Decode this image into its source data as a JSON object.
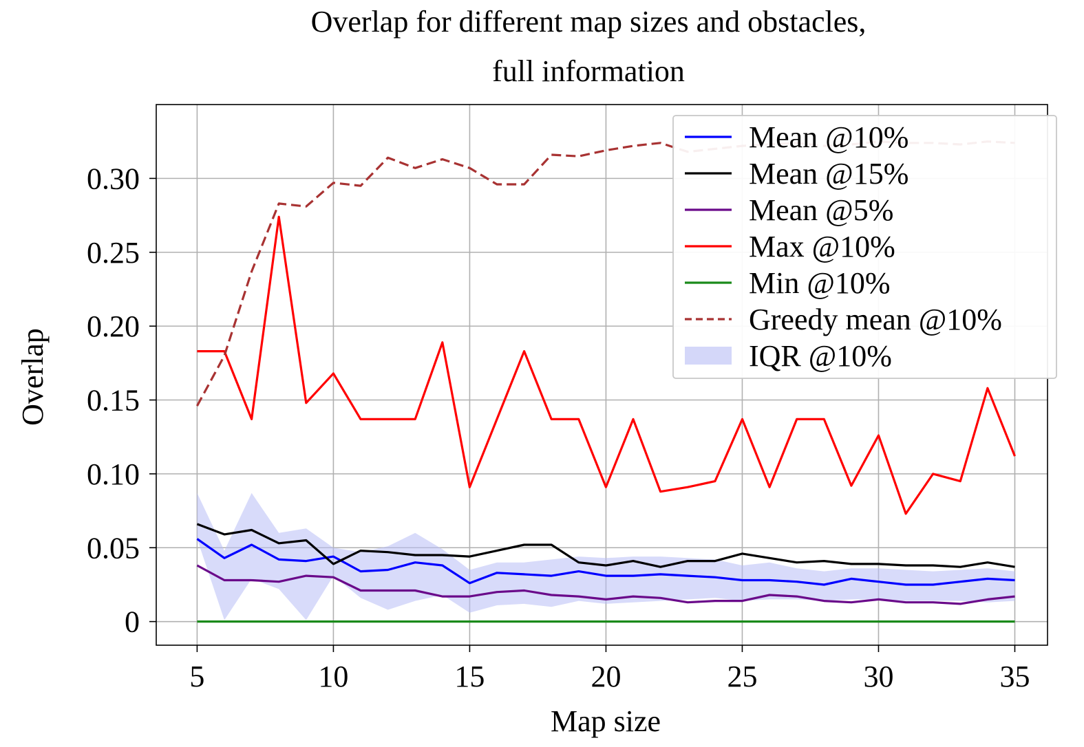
{
  "chart_data": {
    "type": "line",
    "title": [
      "Overlap for different map sizes and obstacles,",
      "full information"
    ],
    "xlabel": "Map size",
    "ylabel": "Overlap",
    "xlim": [
      3.5,
      36.2
    ],
    "ylim": [
      -0.016,
      0.35
    ],
    "xticks": [
      5,
      10,
      15,
      20,
      25,
      30,
      35
    ],
    "yticks": [
      0,
      0.05,
      0.1,
      0.15,
      0.2,
      0.25,
      0.3
    ],
    "ytick_labels": [
      "0",
      "0.05",
      "0.10",
      "0.15",
      "0.20",
      "0.25",
      "0.30"
    ],
    "grid": true,
    "legend_position": "top-right",
    "x": [
      5,
      6,
      7,
      8,
      9,
      10,
      11,
      12,
      13,
      14,
      15,
      16,
      17,
      18,
      19,
      20,
      21,
      22,
      23,
      24,
      25,
      26,
      27,
      28,
      29,
      30,
      31,
      32,
      33,
      34,
      35
    ],
    "series": [
      {
        "name": "Mean @10%",
        "color": "#0000ff",
        "style": "solid",
        "values": [
          0.056,
          0.043,
          0.052,
          0.042,
          0.041,
          0.044,
          0.034,
          0.035,
          0.04,
          0.038,
          0.026,
          0.033,
          0.032,
          0.031,
          0.034,
          0.031,
          0.031,
          0.032,
          0.031,
          0.03,
          0.028,
          0.028,
          0.027,
          0.025,
          0.029,
          0.027,
          0.025,
          0.025,
          0.027,
          0.029,
          0.028
        ]
      },
      {
        "name": "Mean @15%",
        "color": "#000000",
        "style": "solid",
        "values": [
          0.066,
          0.059,
          0.062,
          0.053,
          0.055,
          0.039,
          0.048,
          0.047,
          0.045,
          0.045,
          0.044,
          0.048,
          0.052,
          0.052,
          0.04,
          0.038,
          0.041,
          0.037,
          0.041,
          0.041,
          0.046,
          0.043,
          0.04,
          0.041,
          0.039,
          0.039,
          0.038,
          0.038,
          0.037,
          0.04,
          0.037
        ]
      },
      {
        "name": "Mean @5%",
        "color": "#6a0a8a",
        "style": "solid",
        "values": [
          0.038,
          0.028,
          0.028,
          0.027,
          0.031,
          0.03,
          0.021,
          0.021,
          0.021,
          0.017,
          0.017,
          0.02,
          0.021,
          0.018,
          0.017,
          0.015,
          0.017,
          0.016,
          0.013,
          0.014,
          0.014,
          0.018,
          0.017,
          0.014,
          0.013,
          0.015,
          0.013,
          0.013,
          0.012,
          0.015,
          0.017
        ]
      },
      {
        "name": "Max @10%",
        "color": "#ff0000",
        "style": "solid",
        "values": [
          0.183,
          0.183,
          0.137,
          0.274,
          0.148,
          0.168,
          0.137,
          0.137,
          0.137,
          0.189,
          0.091,
          0.137,
          0.183,
          0.137,
          0.137,
          0.091,
          0.137,
          0.088,
          0.091,
          0.095,
          0.137,
          0.091,
          0.137,
          0.137,
          0.092,
          0.126,
          0.073,
          0.1,
          0.095,
          0.158,
          0.112
        ]
      },
      {
        "name": "Min @10%",
        "color": "#1a8a1a",
        "style": "solid",
        "values": [
          0,
          0,
          0,
          0,
          0,
          0,
          0,
          0,
          0,
          0,
          0,
          0,
          0,
          0,
          0,
          0,
          0,
          0,
          0,
          0,
          0,
          0,
          0,
          0,
          0,
          0,
          0,
          0,
          0,
          0,
          0
        ]
      },
      {
        "name": "Greedy mean @10%",
        "color": "#a83232",
        "style": "dashed",
        "values": [
          0.146,
          0.18,
          0.237,
          0.283,
          0.281,
          0.297,
          0.295,
          0.314,
          0.307,
          0.313,
          0.307,
          0.296,
          0.296,
          0.316,
          0.315,
          0.319,
          0.322,
          0.324,
          0.318,
          0.32,
          0.322,
          0.323,
          0.324,
          0.322,
          0.323,
          0.325,
          0.324,
          0.324,
          0.323,
          0.325,
          0.324
        ]
      }
    ],
    "band": {
      "name": "IQR @10%",
      "color": "#b8bdf5",
      "lower": [
        0.056,
        0.001,
        0.029,
        0.022,
        0.001,
        0.031,
        0.016,
        0.008,
        0.014,
        0.018,
        0.006,
        0.011,
        0.012,
        0.01,
        0.014,
        0.012,
        0.013,
        0.014,
        0.015,
        0.016,
        0.014,
        0.015,
        0.015,
        0.014,
        0.015,
        0.015,
        0.014,
        0.014,
        0.014,
        0.013,
        0.014
      ],
      "upper": [
        0.087,
        0.048,
        0.087,
        0.06,
        0.063,
        0.05,
        0.047,
        0.051,
        0.06,
        0.049,
        0.035,
        0.04,
        0.04,
        0.042,
        0.044,
        0.043,
        0.044,
        0.044,
        0.043,
        0.042,
        0.038,
        0.04,
        0.036,
        0.034,
        0.036,
        0.036,
        0.035,
        0.034,
        0.035,
        0.036,
        0.034
      ]
    }
  }
}
